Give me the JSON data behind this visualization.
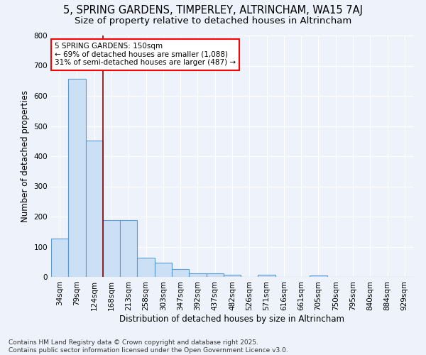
{
  "title_line1": "5, SPRING GARDENS, TIMPERLEY, ALTRINCHAM, WA15 7AJ",
  "title_line2": "Size of property relative to detached houses in Altrincham",
  "xlabel": "Distribution of detached houses by size in Altrincham",
  "ylabel": "Number of detached properties",
  "categories": [
    "34sqm",
    "79sqm",
    "124sqm",
    "168sqm",
    "213sqm",
    "258sqm",
    "303sqm",
    "347sqm",
    "392sqm",
    "437sqm",
    "482sqm",
    "526sqm",
    "571sqm",
    "616sqm",
    "661sqm",
    "705sqm",
    "750sqm",
    "795sqm",
    "840sqm",
    "884sqm",
    "929sqm"
  ],
  "values": [
    127,
    657,
    452,
    188,
    188,
    63,
    46,
    27,
    12,
    12,
    8,
    0,
    8,
    0,
    0,
    5,
    0,
    0,
    0,
    0,
    0
  ],
  "bar_color": "#cce0f5",
  "bar_edge_color": "#5b9bd5",
  "red_line_x": 2.5,
  "annotation_text": "5 SPRING GARDENS: 150sqm\n← 69% of detached houses are smaller (1,088)\n31% of semi-detached houses are larger (487) →",
  "annotation_box_color": "white",
  "annotation_box_edge": "red",
  "ylim": [
    0,
    800
  ],
  "yticks": [
    0,
    100,
    200,
    300,
    400,
    500,
    600,
    700,
    800
  ],
  "footer_line1": "Contains HM Land Registry data © Crown copyright and database right 2025.",
  "footer_line2": "Contains public sector information licensed under the Open Government Licence v3.0.",
  "bg_color": "#eef2fb",
  "grid_color": "white",
  "title_fontsize": 10.5,
  "subtitle_fontsize": 9.5,
  "axis_label_fontsize": 8.5,
  "tick_fontsize": 7.5,
  "annotation_fontsize": 7.5,
  "footer_fontsize": 6.5
}
